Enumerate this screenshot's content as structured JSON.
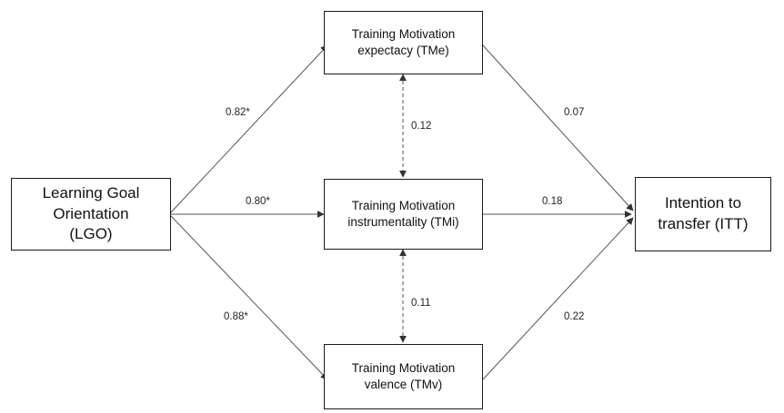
{
  "nodes": {
    "lgo": {
      "lines": [
        "Learning Goal",
        "Orientation",
        "(LGO)"
      ]
    },
    "tme": {
      "lines": [
        "Training Motivation",
        "expectacy (TMe)"
      ]
    },
    "tmi": {
      "lines": [
        "Training Motivation",
        "instrumentality (TMi)"
      ]
    },
    "tmv": {
      "lines": [
        "Training Motivation",
        "valence (TMv)"
      ]
    },
    "itt": {
      "lines": [
        "Intention to",
        "transfer (ITT)"
      ]
    }
  },
  "paths": {
    "lgo_tme": "0.82*",
    "lgo_tmi": "0.80*",
    "lgo_tmv": "0.88*",
    "tme_tmi": "0.12",
    "tmi_tmv": "0.11",
    "tme_itt": "0.07",
    "tmi_itt": "0.18",
    "tmv_itt": "0.22"
  }
}
